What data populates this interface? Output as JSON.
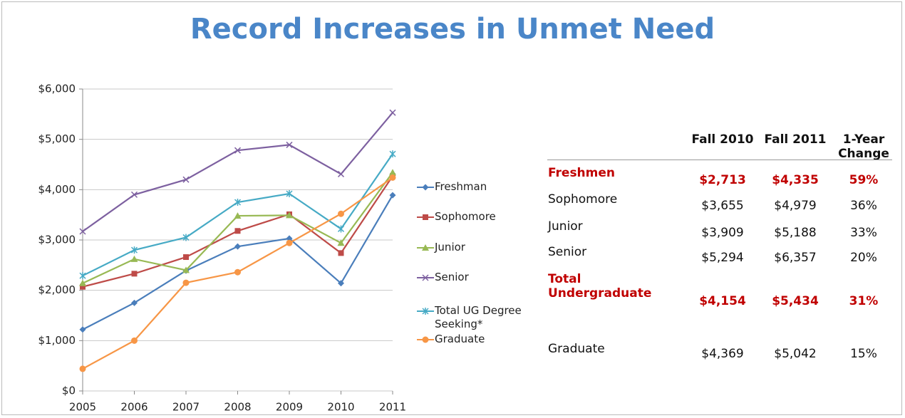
{
  "chart_data": {
    "type": "line",
    "title": "Record Increases in Unmet Need",
    "x": [
      2005,
      2006,
      2007,
      2008,
      2009,
      2010,
      2011
    ],
    "xlim": [
      2005,
      2011
    ],
    "xticks": [
      2005,
      2006,
      2007,
      2008,
      2009,
      2010,
      2011
    ],
    "ylim": [
      0,
      6000
    ],
    "yticks": [
      {
        "value": 0,
        "label": "$0"
      },
      {
        "value": 1000,
        "label": "$1,000"
      },
      {
        "value": 2000,
        "label": "$2,000"
      },
      {
        "value": 3000,
        "label": "$3,000"
      },
      {
        "value": 4000,
        "label": "$4,000"
      },
      {
        "value": 5000,
        "label": "$5,000"
      },
      {
        "value": 6000,
        "label": "$6,000"
      }
    ],
    "grid": true,
    "legend": "right",
    "series": [
      {
        "name": "Freshman",
        "color": "#4a7ebb",
        "marker": "diamond",
        "values": [
          1220,
          1750,
          2390,
          2870,
          3030,
          2140,
          3890
        ]
      },
      {
        "name": "Sophomore",
        "color": "#be4b48",
        "marker": "square",
        "values": [
          2070,
          2330,
          2660,
          3180,
          3510,
          2740,
          4270
        ]
      },
      {
        "name": "Junior",
        "color": "#98b954",
        "marker": "triangle",
        "values": [
          2140,
          2620,
          2400,
          3480,
          3490,
          2940,
          4340
        ]
      },
      {
        "name": "Senior",
        "color": "#7d60a0",
        "marker": "x",
        "values": [
          3170,
          3900,
          4200,
          4780,
          4890,
          4310,
          5530
        ]
      },
      {
        "name": "Total UG Degree Seeking*",
        "color": "#46aac5",
        "marker": "star",
        "values": [
          2290,
          2800,
          3050,
          3750,
          3920,
          3220,
          4710
        ]
      },
      {
        "name": "Graduate",
        "color": "#f79646",
        "marker": "circle",
        "values": [
          440,
          1000,
          2150,
          2360,
          2940,
          3520,
          4240
        ]
      }
    ]
  },
  "table": {
    "header": [
      "Fall 2010",
      "Fall 2011",
      "1-Year Change"
    ],
    "rows": [
      {
        "label": "Freshmen",
        "highlight": true,
        "cells": [
          "$2,713",
          "$4,335",
          "59%"
        ]
      },
      {
        "label": "Sophomore",
        "highlight": false,
        "cells": [
          "$3,655",
          "$4,979",
          "36%"
        ]
      },
      {
        "label": "Junior",
        "highlight": false,
        "cells": [
          "$3,909",
          "$5,188",
          "33%"
        ]
      },
      {
        "label": "Senior",
        "highlight": false,
        "cells": [
          "$5,294",
          "$6,357",
          "20%"
        ]
      },
      {
        "label": "Total Undergraduate",
        "highlight": true,
        "cells": [
          "$4,154",
          "$5,434",
          "31%"
        ]
      },
      {
        "label": "Graduate",
        "highlight": false,
        "cells": [
          "$4,369",
          "$5,042",
          "15%"
        ]
      }
    ]
  }
}
